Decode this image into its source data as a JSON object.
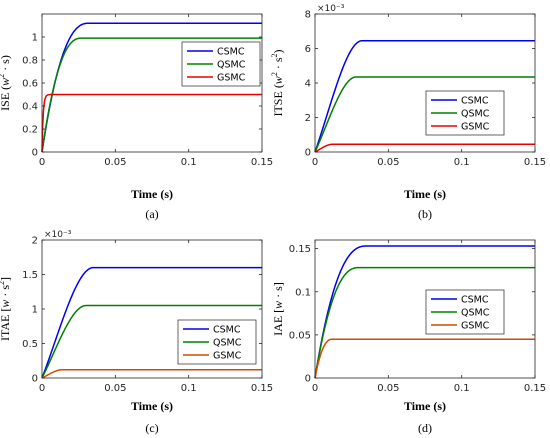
{
  "chart_data": [
    {
      "type": "line",
      "caption": "(a)",
      "xlabel": "Time (s)",
      "ylabel": {
        "prefix": "ISE",
        "expr": [
          "w",
          "2",
          " · s"
        ],
        "brackets": [
          "(",
          ")"
        ]
      },
      "exponent": "",
      "xlim": [
        0,
        0.15
      ],
      "ylim": [
        0,
        1.2
      ],
      "xticks": [
        "0",
        "0.05",
        "0.1",
        "0.15"
      ],
      "yticks": [
        "0",
        "0.2",
        "0.4",
        "0.6",
        "0.8",
        "1"
      ],
      "legend_position": "top-right",
      "series": [
        {
          "name": "CSMC",
          "color": "#0000ee",
          "final": 1.12,
          "settle": 0.032,
          "shape": "smooth"
        },
        {
          "name": "QSMC",
          "color": "#008000",
          "final": 0.99,
          "settle": 0.027,
          "shape": "smooth"
        },
        {
          "name": "GSMC",
          "color": "#ee0000",
          "final": 0.5,
          "settle": 0.004,
          "shape": "fast"
        }
      ]
    },
    {
      "type": "line",
      "caption": "(b)",
      "xlabel": "Time (s)",
      "ylabel": {
        "prefix": "ITSE",
        "expr": [
          "w",
          "2",
          " · s",
          "2"
        ],
        "brackets": [
          "(",
          ")"
        ]
      },
      "exponent": "×10⁻³",
      "xlim": [
        0,
        0.15
      ],
      "ylim": [
        0,
        8
      ],
      "xticks": [
        "0",
        "0.05",
        "0.1",
        "0.15"
      ],
      "yticks": [
        "0",
        "2",
        "4",
        "6",
        "8"
      ],
      "legend_position": "right",
      "series": [
        {
          "name": "CSMC",
          "color": "#0000ee",
          "final": 6.45,
          "settle": 0.032,
          "shape": "scurve"
        },
        {
          "name": "QSMC",
          "color": "#008000",
          "final": 4.35,
          "settle": 0.028,
          "shape": "scurve"
        },
        {
          "name": "GSMC",
          "color": "#ee0000",
          "final": 0.45,
          "settle": 0.012,
          "shape": "scurve"
        }
      ]
    },
    {
      "type": "line",
      "caption": "(c)",
      "xlabel": "Time (s)",
      "ylabel": {
        "prefix": "ITAE",
        "expr": [
          "w",
          "",
          " · s",
          "2"
        ],
        "brackets": [
          "[",
          "]"
        ]
      },
      "exponent": "×10⁻³",
      "xlim": [
        0,
        0.15
      ],
      "ylim": [
        0,
        2
      ],
      "xticks": [
        "0",
        "0.05",
        "0.1",
        "0.15"
      ],
      "yticks": [
        "0",
        "0.5",
        "1",
        "1.5",
        "2"
      ],
      "legend_position": "bottom-right",
      "series": [
        {
          "name": "CSMC",
          "color": "#0000ee",
          "final": 1.6,
          "settle": 0.035,
          "shape": "scurve"
        },
        {
          "name": "QSMC",
          "color": "#008000",
          "final": 1.05,
          "settle": 0.03,
          "shape": "scurve"
        },
        {
          "name": "GSMC",
          "color": "#d24a00",
          "final": 0.12,
          "settle": 0.014,
          "shape": "scurve"
        }
      ]
    },
    {
      "type": "line",
      "caption": "(d)",
      "xlabel": "Time (s)",
      "ylabel": {
        "prefix": "IAE",
        "expr": [
          "w",
          "",
          " · s"
        ],
        "brackets": [
          "[",
          "]"
        ]
      },
      "exponent": "",
      "xlim": [
        0,
        0.15
      ],
      "ylim": [
        0,
        0.16
      ],
      "xticks": [
        "0",
        "0.05",
        "0.1",
        "0.15"
      ],
      "yticks": [
        "0",
        "0.05",
        "0.1",
        "0.15"
      ],
      "legend_position": "right",
      "series": [
        {
          "name": "CSMC",
          "color": "#0000ee",
          "final": 0.153,
          "settle": 0.035,
          "shape": "smooth"
        },
        {
          "name": "QSMC",
          "color": "#008000",
          "final": 0.128,
          "settle": 0.03,
          "shape": "smooth"
        },
        {
          "name": "GSMC",
          "color": "#d24a00",
          "final": 0.045,
          "settle": 0.012,
          "shape": "smooth"
        }
      ]
    }
  ]
}
